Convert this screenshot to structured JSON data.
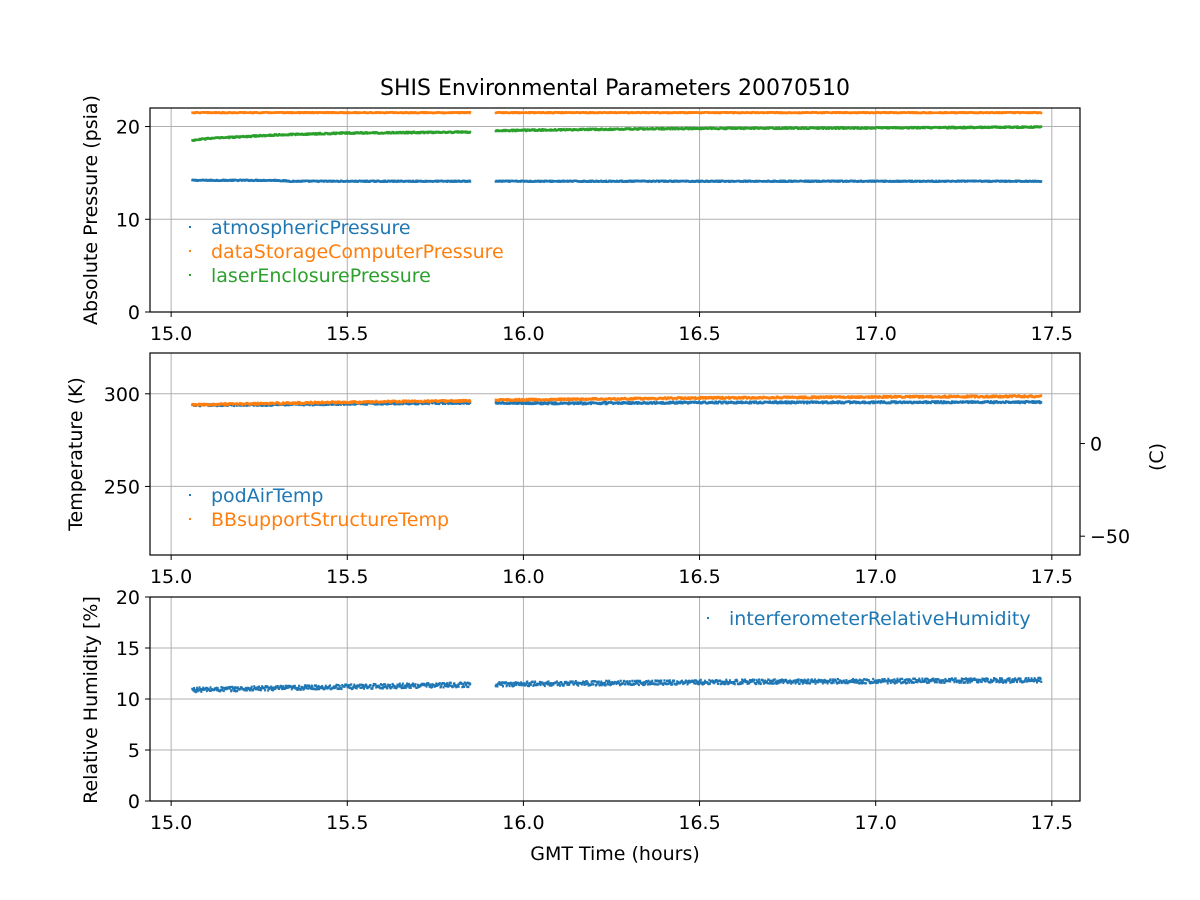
{
  "chart_data": [
    {
      "type": "scatter",
      "title": "SHIS Environmental Parameters 20070510",
      "xlabel": "",
      "ylabel": "Absolute Pressure (psia)",
      "xlim": [
        14.94,
        17.58
      ],
      "ylim": [
        0,
        22
      ],
      "xticks": [
        "15.0",
        "15.5",
        "16.0",
        "16.5",
        "17.0",
        "17.5"
      ],
      "yticks": [
        "0",
        "10",
        "20"
      ],
      "grid": true,
      "legend_position": "lower-left",
      "gap": [
        15.85,
        15.92
      ],
      "series": [
        {
          "name": "atmosphericPressure",
          "color": "#1f77b4",
          "x": [
            15.06,
            15.3,
            15.34,
            15.85,
            15.92,
            16.5,
            17.0,
            17.47
          ],
          "y": [
            14.2,
            14.2,
            14.1,
            14.1,
            14.1,
            14.1,
            14.1,
            14.1
          ],
          "noise": 0.06
        },
        {
          "name": "dataStorageComputerPressure",
          "color": "#ff7f0e",
          "x": [
            15.06,
            15.85,
            15.92,
            17.47
          ],
          "y": [
            21.5,
            21.5,
            21.5,
            21.5
          ],
          "noise": 0.05
        },
        {
          "name": "laserEnclosurePressure",
          "color": "#2ca02c",
          "x": [
            15.06,
            15.1,
            15.3,
            15.5,
            15.85,
            15.92,
            16.2,
            16.5,
            17.0,
            17.47
          ],
          "y": [
            18.5,
            18.7,
            19.1,
            19.3,
            19.4,
            19.55,
            19.7,
            19.8,
            19.85,
            19.95
          ],
          "noise": 0.08
        }
      ]
    },
    {
      "type": "scatter",
      "title": "",
      "xlabel": "",
      "ylabel": "Temperature (K)",
      "y2label": "(C)",
      "xlim": [
        14.94,
        17.58
      ],
      "ylim": [
        213,
        322
      ],
      "y2ticks": [
        "0",
        "−50"
      ],
      "xticks": [
        "15.0",
        "15.5",
        "16.0",
        "16.5",
        "17.0",
        "17.5"
      ],
      "yticks": [
        "300",
        "250"
      ],
      "grid": true,
      "legend_position": "lower-left",
      "gap": [
        15.85,
        15.92
      ],
      "series": [
        {
          "name": "podAirTemp",
          "color": "#1f77b4",
          "x": [
            15.06,
            15.3,
            15.5,
            15.85,
            15.92,
            16.1,
            16.5,
            17.0,
            17.47
          ],
          "y": [
            293.8,
            294.1,
            294.6,
            295.1,
            295.2,
            294.8,
            295.3,
            295.4,
            295.5
          ],
          "noise": 0.5
        },
        {
          "name": "BBsupportStructureTemp",
          "color": "#ff7f0e",
          "x": [
            15.06,
            15.3,
            15.5,
            15.85,
            15.92,
            16.5,
            17.0,
            17.47
          ],
          "y": [
            294.0,
            294.8,
            295.5,
            296.2,
            296.6,
            297.7,
            298.3,
            298.6
          ],
          "noise": 0.5
        }
      ]
    },
    {
      "type": "scatter",
      "title": "",
      "xlabel": "GMT Time (hours)",
      "ylabel": "Relative Humidity [%]",
      "xlim": [
        14.94,
        17.58
      ],
      "ylim": [
        0,
        20
      ],
      "xticks": [
        "15.0",
        "15.5",
        "16.0",
        "16.5",
        "17.0",
        "17.5"
      ],
      "yticks": [
        "0",
        "5",
        "10",
        "15",
        "20"
      ],
      "grid": true,
      "legend_position": "upper-right",
      "gap": [
        15.85,
        15.92
      ],
      "series": [
        {
          "name": "interferometerRelativeHumidity",
          "color": "#1f77b4",
          "x": [
            15.06,
            15.5,
            15.85,
            15.92,
            16.5,
            17.0,
            17.47
          ],
          "y": [
            10.9,
            11.2,
            11.4,
            11.45,
            11.65,
            11.75,
            11.85
          ],
          "noise": 0.22
        }
      ]
    }
  ]
}
